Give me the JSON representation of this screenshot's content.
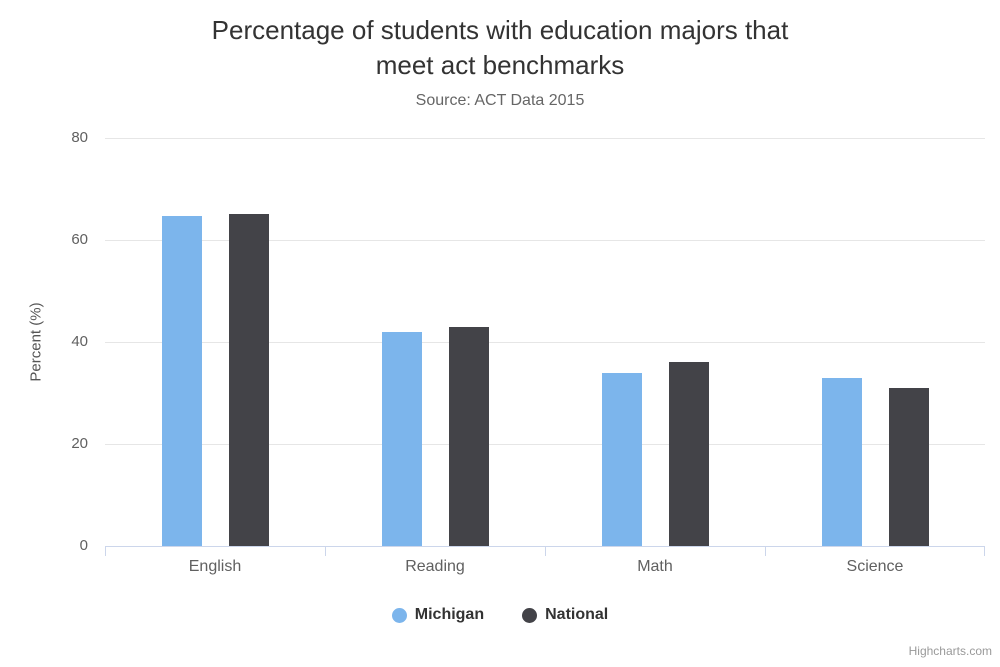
{
  "title_lines": [
    "Percentage of students with education majors that",
    "meet act benchmarks"
  ],
  "subtitle": "Source: ACT Data 2015",
  "credit": "Highcharts.com",
  "colors": {
    "michigan": "#7cb5ec",
    "national": "#434348",
    "gridline": "#e6e6e6",
    "axis": "#ccd6eb",
    "title": "#333333",
    "subtitle": "#666666",
    "axis_label": "#606060",
    "legend_text": "#333333",
    "credit": "#999999"
  },
  "chart_data": {
    "type": "bar",
    "title": "Percentage of students with education majors that meet act benchmarks",
    "subtitle": "Source: ACT Data 2015",
    "categories": [
      "English",
      "Reading",
      "Math",
      "Science"
    ],
    "series": [
      {
        "name": "Michigan",
        "color": "#7cb5ec",
        "values": [
          64.7,
          42,
          34,
          33
        ]
      },
      {
        "name": "National",
        "color": "#434348",
        "values": [
          65,
          43,
          36,
          31
        ]
      }
    ],
    "xlabel": "",
    "ylabel": "Percent (%)",
    "yticks": [
      0,
      20,
      40,
      60,
      80
    ],
    "ylim": [
      0,
      80
    ],
    "grid": true,
    "legend_position": "bottom"
  }
}
